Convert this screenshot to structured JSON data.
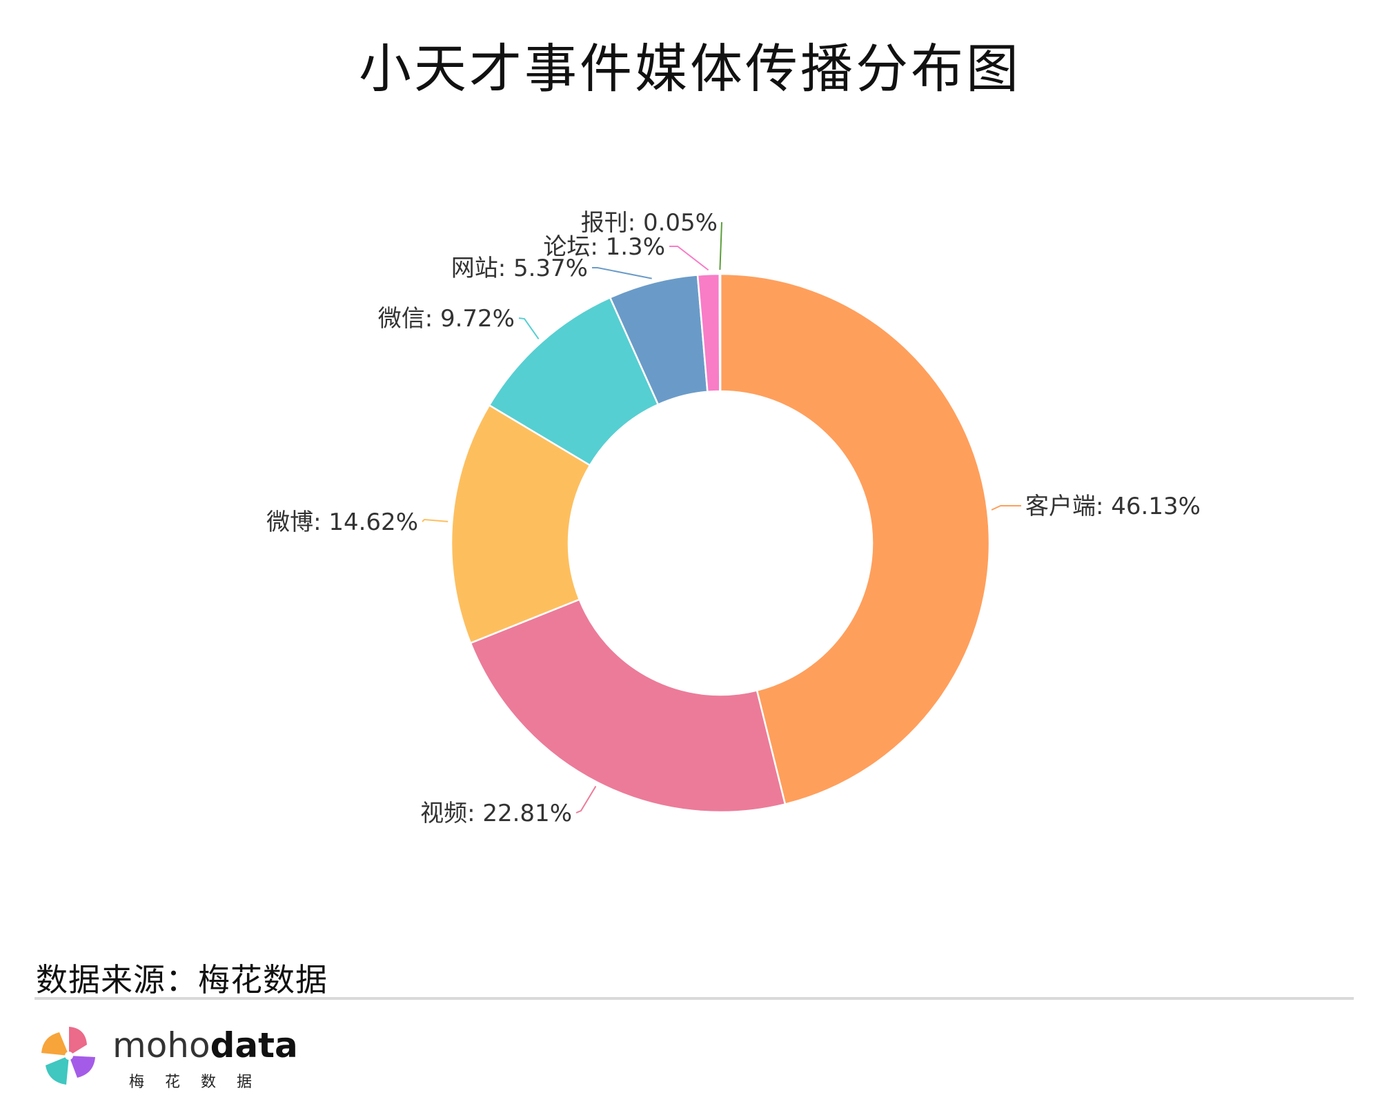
{
  "chart_data": {
    "type": "pie",
    "title": "小天才事件媒体传播分布图",
    "donut": true,
    "categories": [
      "客户端",
      "视频",
      "微博",
      "微信",
      "网站",
      "论坛",
      "报刊"
    ],
    "values": [
      46.13,
      22.81,
      14.62,
      9.72,
      5.37,
      1.3,
      0.05
    ],
    "labels": [
      "客户端: 46.13%",
      "视频: 22.81%",
      "微博: 14.62%",
      "微信: 9.72%",
      "网站: 5.37%",
      "论坛: 1.3%",
      "报刊: 0.05%"
    ],
    "colors": [
      "#FF9F5C",
      "#EC7B99",
      "#FDBF5E",
      "#56CFD2",
      "#6A9BC8",
      "#F97CC7",
      "#5B9E3A"
    ]
  },
  "footer": {
    "source": "数据来源：梅花数据"
  },
  "brand": {
    "name_thin": "moho",
    "name_bold": "data",
    "sub": "梅花数据"
  }
}
